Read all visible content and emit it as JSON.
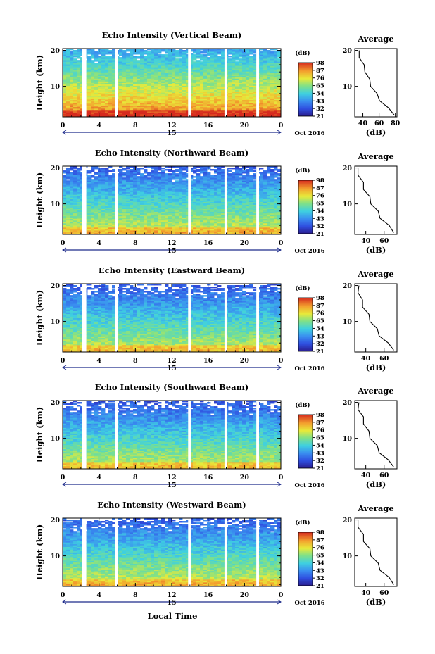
{
  "figure": {
    "xlabel": "Local Time",
    "date_label": "Oct 2016",
    "day_label": "15",
    "ylabel": "Height (km)",
    "colorbar_unit": "(dB)",
    "average_title": "Average",
    "average_xlabel": "(dB)"
  },
  "chart_data": [
    {
      "type": "heatmap",
      "title": "Echo Intensity (Vertical Beam)",
      "xlabel": "Local Time",
      "ylabel": "Height (km)",
      "x_ticks": [
        "0",
        "4",
        "8",
        "12",
        "16",
        "20",
        "0"
      ],
      "y_ticks": [
        "20",
        "10"
      ],
      "xlim": [
        0,
        24
      ],
      "ylim": [
        1.5,
        20.5
      ],
      "colorbar_ticks": [
        "98",
        "87",
        "76",
        "65",
        "54",
        "43",
        "32",
        "21"
      ],
      "colorbar_range": [
        21,
        98
      ],
      "data_gaps_hours": [
        [
          2.1,
          2.6
        ],
        [
          5.8,
          6.1
        ],
        [
          13.8,
          14.1
        ],
        [
          17.8,
          18.1
        ],
        [
          21.3,
          21.6
        ]
      ],
      "profile": {
        "title": "Average",
        "xlabel": "(dB)",
        "x_ticks": [
          "40",
          "60",
          "80"
        ],
        "xlim": [
          30,
          82
        ],
        "y_ticks": [
          "20",
          "10"
        ],
        "height_km": [
          2,
          4,
          6,
          8,
          10,
          12,
          14,
          16,
          18,
          20
        ],
        "db": [
          80,
          70,
          62,
          56,
          51,
          47,
          44,
          40,
          37,
          34
        ]
      },
      "low_frac": 0.0,
      "base": 0.92,
      "decay": 0.6,
      "top_noise": 0.15
    },
    {
      "type": "heatmap",
      "title": "Echo Intensity (Northward Beam)",
      "xlabel": "Local Time",
      "ylabel": "Height (km)",
      "x_ticks": [
        "0",
        "4",
        "8",
        "12",
        "16",
        "20",
        "0"
      ],
      "y_ticks": [
        "20",
        "10"
      ],
      "xlim": [
        0,
        24
      ],
      "ylim": [
        1.5,
        20.5
      ],
      "colorbar_ticks": [
        "98",
        "87",
        "76",
        "65",
        "54",
        "43",
        "32",
        "21"
      ],
      "colorbar_range": [
        21,
        98
      ],
      "data_gaps_hours": [
        [
          2.1,
          2.6
        ],
        [
          5.8,
          6.1
        ],
        [
          13.8,
          14.1
        ],
        [
          17.8,
          18.1
        ],
        [
          21.3,
          21.6
        ]
      ],
      "profile": {
        "title": "Average",
        "xlabel": "(dB)",
        "x_ticks": [
          "40",
          "60"
        ],
        "xlim": [
          28,
          74
        ],
        "y_ticks": [
          "20",
          "10"
        ],
        "height_km": [
          2,
          4,
          6,
          8,
          10,
          12,
          14,
          16,
          18,
          20
        ],
        "db": [
          72,
          64,
          57,
          52,
          47,
          43,
          39,
          36,
          33,
          30
        ]
      },
      "low_frac": 0.0,
      "base": 0.72,
      "decay": 0.55,
      "top_noise": 0.45
    },
    {
      "type": "heatmap",
      "title": "Echo Intensity (Eastward Beam)",
      "xlabel": "Local Time",
      "ylabel": "Height (km)",
      "x_ticks": [
        "0",
        "4",
        "8",
        "12",
        "16",
        "20",
        "0"
      ],
      "y_ticks": [
        "20",
        "10"
      ],
      "xlim": [
        0,
        24
      ],
      "ylim": [
        1.5,
        20.5
      ],
      "colorbar_ticks": [
        "98",
        "87",
        "76",
        "65",
        "54",
        "43",
        "32",
        "21"
      ],
      "colorbar_range": [
        21,
        98
      ],
      "data_gaps_hours": [
        [
          2.1,
          2.6
        ],
        [
          5.8,
          6.1
        ],
        [
          13.8,
          14.1
        ],
        [
          17.8,
          18.1
        ],
        [
          21.3,
          21.6
        ]
      ],
      "profile": {
        "title": "Average",
        "xlabel": "(dB)",
        "x_ticks": [
          "40",
          "60"
        ],
        "xlim": [
          28,
          74
        ],
        "y_ticks": [
          "20",
          "10"
        ],
        "height_km": [
          2,
          4,
          6,
          8,
          10,
          12,
          14,
          16,
          18,
          20
        ],
        "db": [
          72,
          63,
          56,
          51,
          46,
          42,
          38,
          35,
          33,
          31
        ]
      },
      "low_frac": 0.0,
      "base": 0.7,
      "decay": 0.55,
      "top_noise": 0.55
    },
    {
      "type": "heatmap",
      "title": "Echo Intensity (Southward Beam)",
      "xlabel": "Local Time",
      "ylabel": "Height (km)",
      "x_ticks": [
        "0",
        "4",
        "8",
        "12",
        "16",
        "20",
        "0"
      ],
      "y_ticks": [
        "20",
        "10"
      ],
      "xlim": [
        0,
        24
      ],
      "ylim": [
        1.5,
        20.5
      ],
      "colorbar_ticks": [
        "98",
        "87",
        "76",
        "65",
        "54",
        "43",
        "32",
        "21"
      ],
      "colorbar_range": [
        21,
        98
      ],
      "data_gaps_hours": [
        [
          2.1,
          2.6
        ],
        [
          5.8,
          6.1
        ],
        [
          13.8,
          14.1
        ],
        [
          17.8,
          18.1
        ],
        [
          21.3,
          21.6
        ]
      ],
      "profile": {
        "title": "Average",
        "xlabel": "(dB)",
        "x_ticks": [
          "40",
          "60"
        ],
        "xlim": [
          28,
          74
        ],
        "y_ticks": [
          "20",
          "10"
        ],
        "height_km": [
          2,
          4,
          6,
          8,
          10,
          12,
          14,
          16,
          18,
          20
        ],
        "db": [
          72,
          63,
          56,
          51,
          46,
          42,
          39,
          36,
          33,
          31
        ]
      },
      "low_frac": 0.0,
      "base": 0.7,
      "decay": 0.55,
      "top_noise": 0.55
    },
    {
      "type": "heatmap",
      "title": "Echo Intensity (Westward Beam)",
      "xlabel": "Local Time",
      "ylabel": "Height (km)",
      "x_ticks": [
        "0",
        "4",
        "8",
        "12",
        "16",
        "20",
        "0"
      ],
      "y_ticks": [
        "20",
        "10"
      ],
      "xlim": [
        0,
        24
      ],
      "ylim": [
        1.5,
        20.5
      ],
      "colorbar_ticks": [
        "98",
        "87",
        "76",
        "65",
        "54",
        "43",
        "32",
        "21"
      ],
      "colorbar_range": [
        21,
        98
      ],
      "data_gaps_hours": [
        [
          2.1,
          2.6
        ],
        [
          5.8,
          6.1
        ],
        [
          13.8,
          14.1
        ],
        [
          17.8,
          18.1
        ],
        [
          21.3,
          21.6
        ]
      ],
      "profile": {
        "title": "Average",
        "xlabel": "(dB)",
        "x_ticks": [
          "40",
          "60"
        ],
        "xlim": [
          28,
          74
        ],
        "y_ticks": [
          "20",
          "10"
        ],
        "height_km": [
          2,
          4,
          6,
          8,
          10,
          12,
          14,
          16,
          18,
          20
        ],
        "db": [
          72,
          64,
          57,
          52,
          47,
          43,
          39,
          36,
          33,
          30
        ]
      },
      "low_frac": 0.0,
      "base": 0.72,
      "decay": 0.55,
      "top_noise": 0.5
    }
  ]
}
